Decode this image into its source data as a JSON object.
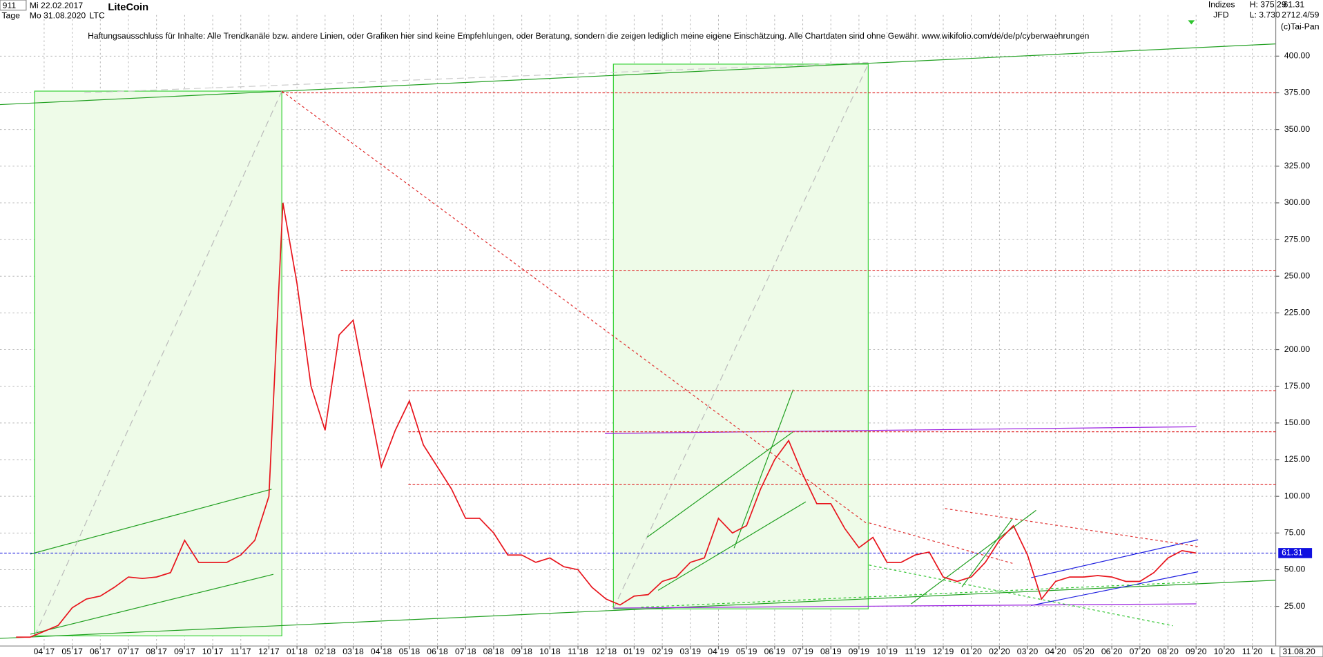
{
  "chart_data": {
    "type": "line",
    "title": "LiteCoin",
    "header": {
      "id": "911",
      "start": "Mi 22.02.2017",
      "period": "Tage",
      "end": "Mo 31.08.2020",
      "symbol": "LTC",
      "source": "Indizes",
      "broker": "JFD",
      "high": "H: 375.29",
      "low": "L: 3.730",
      "counter": "2712.4/59",
      "copyright": "(c)Tai-Pan",
      "date": "31.08.20",
      "scale": "L"
    },
    "annotation": "Haftungsausschluss für Inhalte: Alle Trendkanäle bzw. andere Linien, oder Grafiken hier sind keine Empfehlungen, oder Beratung, sondern die zeigen lediglich meine eigene Einschätzung. Alle Chartdaten sind ohne Gewähr.  www.wikifolio.com/de/de/p/cyberwaehrungen",
    "categories": [
      null,
      null,
      "04 17",
      null,
      "05 17",
      null,
      "06 17",
      null,
      "07 17",
      null,
      "08 17",
      null,
      "09 17",
      null,
      "10 17",
      null,
      "11 17",
      null,
      "12 17",
      null,
      "01 18",
      null,
      "02 18",
      null,
      "03 18",
      null,
      "04 18",
      null,
      "05 18",
      null,
      "06 18",
      null,
      "07 18",
      null,
      "08 18",
      null,
      "09 18",
      null,
      "10 18",
      null,
      "11 18",
      null,
      "12 18",
      null,
      "01 19",
      null,
      "02 19",
      null,
      "03 19",
      null,
      "04 19",
      null,
      "05 19",
      null,
      "06 19",
      null,
      "07 19",
      null,
      "08 19",
      null,
      "09 19",
      null,
      "10 19",
      null,
      "11 19",
      null,
      "12 19",
      null,
      "01 20",
      null,
      "02 20",
      null,
      "03 20",
      null,
      "04 20",
      null,
      "05 20",
      null,
      "06 20",
      null,
      "07 20",
      null,
      "08 20",
      null,
      "09 20",
      null,
      "10 20",
      null,
      "11 20",
      null
    ],
    "series": [
      {
        "name": "LTC",
        "color": "#e8141c",
        "values": [
          4,
          4,
          8,
          12,
          24,
          30,
          32,
          38,
          45,
          44,
          45,
          48,
          70,
          55,
          55,
          55,
          60,
          70,
          100,
          300,
          245,
          175,
          145,
          210,
          220,
          170,
          120,
          145,
          165,
          135,
          120,
          105,
          85,
          85,
          75,
          60,
          60,
          55,
          58,
          52,
          50,
          38,
          30,
          26,
          32,
          33,
          42,
          45,
          55,
          58,
          85,
          75,
          80,
          105,
          125,
          138,
          115,
          95,
          95,
          78,
          65,
          72,
          55,
          55,
          60,
          62,
          45,
          42,
          45,
          55,
          70,
          80,
          60,
          30,
          42,
          45,
          45,
          46,
          45,
          42,
          42,
          48,
          58,
          63,
          61.31,
          null,
          null,
          null,
          null,
          null
        ]
      }
    ],
    "last_value": 61.31,
    "reference_lines": [
      {
        "value": 375,
        "color": "#e03030"
      },
      {
        "value": 254,
        "color": "#e03030"
      },
      {
        "value": 172,
        "color": "#e03030"
      },
      {
        "value": 144,
        "color": "#e03030"
      },
      {
        "value": 108,
        "color": "#e03030"
      }
    ],
    "ylim": [
      0,
      428
    ],
    "yticks": [
      {
        "value": 25,
        "label": "25.00"
      },
      {
        "value": 50,
        "label": "50.00"
      },
      {
        "value": 75,
        "label": "75.00"
      },
      {
        "value": 100,
        "label": "100.00"
      },
      {
        "value": 125,
        "label": "125.00"
      },
      {
        "value": 150,
        "label": "150.00"
      },
      {
        "value": 175,
        "label": "175.00"
      },
      {
        "value": 200,
        "label": "200.00"
      },
      {
        "value": 225,
        "label": "225.00"
      },
      {
        "value": 250,
        "label": "250.00"
      },
      {
        "value": 275,
        "label": "275.00"
      },
      {
        "value": 300,
        "label": "300.00"
      },
      {
        "value": 325,
        "label": "325.00"
      },
      {
        "value": 350,
        "label": "350.00"
      },
      {
        "value": 375,
        "label": "375.00"
      },
      {
        "value": 400,
        "label": "400.00"
      }
    ],
    "grid": true
  }
}
